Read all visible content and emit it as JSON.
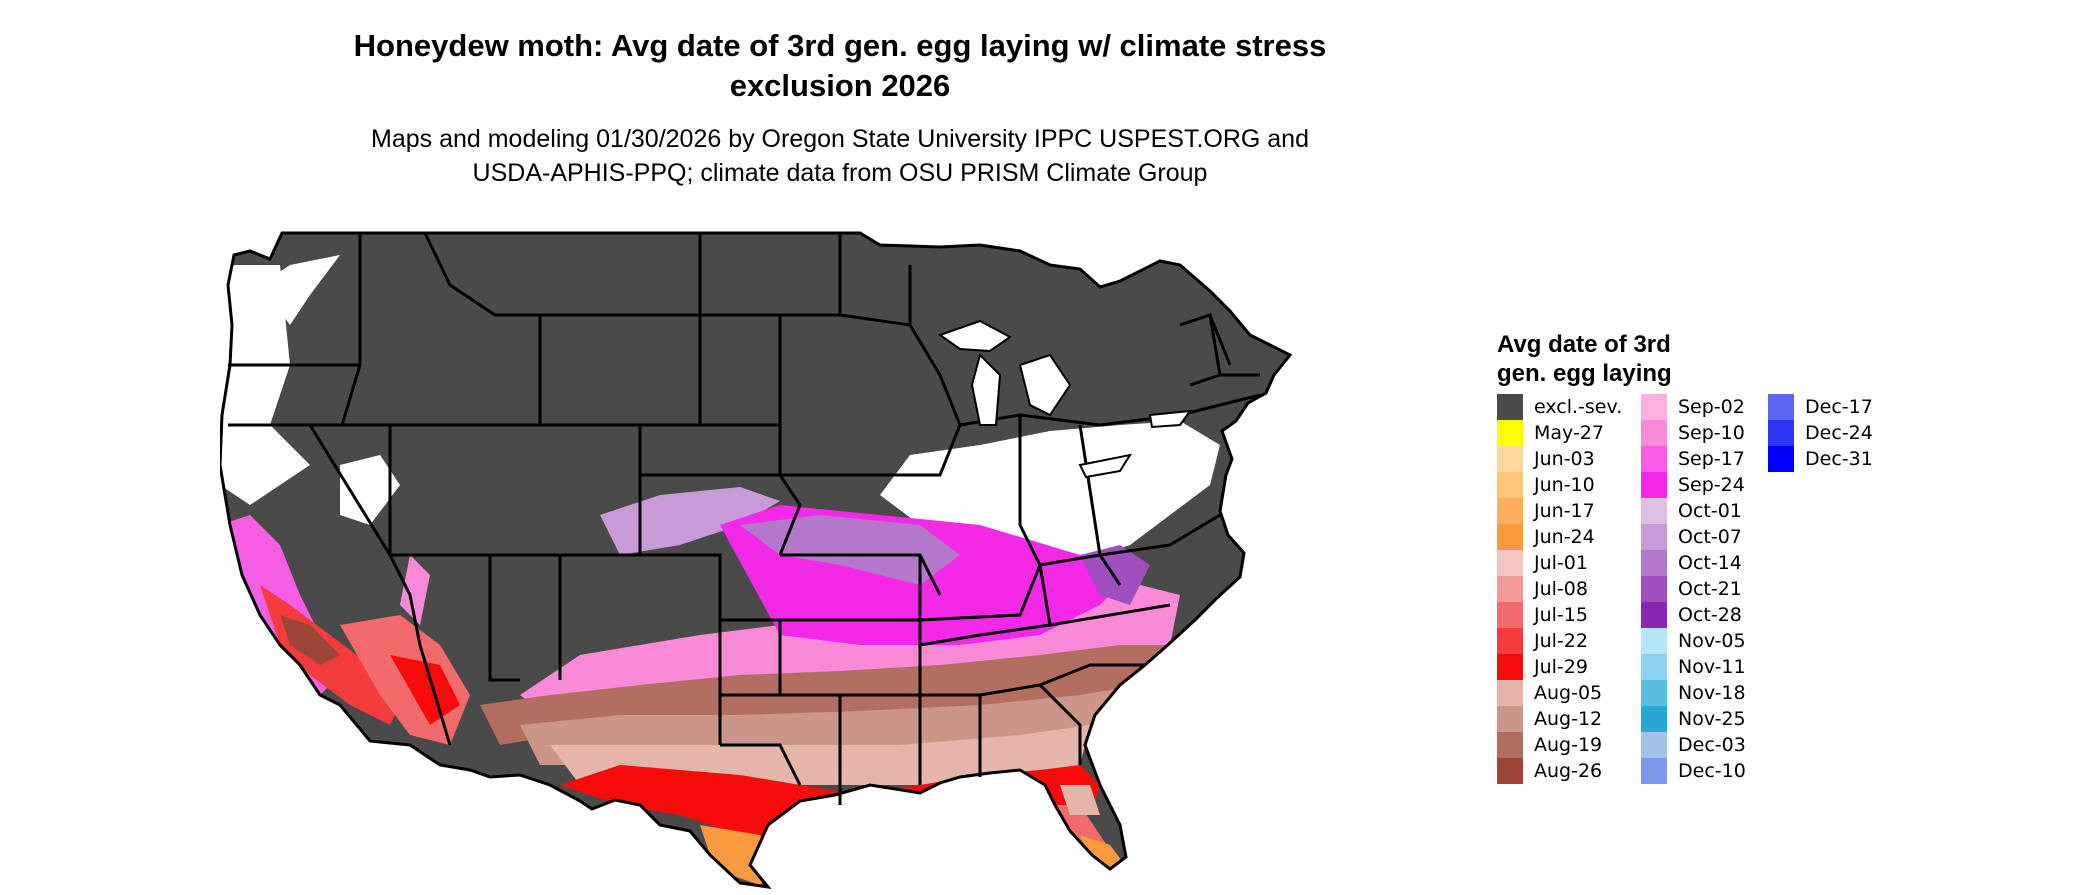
{
  "title": {
    "line1": "Honeydew moth: Avg date of 3rd gen. egg laying w/ climate stress",
    "line2": "exclusion 2026"
  },
  "subtitle": {
    "line1": "Maps and modeling 01/30/2026 by Oregon State University IPPC USPEST.ORG and",
    "line2": "USDA-APHIS-PPQ; climate data from OSU PRISM Climate Group"
  },
  "legend": {
    "title_line1": "Avg date of 3rd",
    "title_line2": "gen. egg laying",
    "items": [
      {
        "label": "excl.-sev.",
        "color": "#4a4a4a"
      },
      {
        "label": "May-27",
        "color": "#ffff00"
      },
      {
        "label": "Jun-03",
        "color": "#fdd99b"
      },
      {
        "label": "Jun-10",
        "color": "#fdc57a"
      },
      {
        "label": "Jun-17",
        "color": "#fcb05e"
      },
      {
        "label": "Jun-24",
        "color": "#f99a3e"
      },
      {
        "label": "Jul-01",
        "color": "#f6c5c5"
      },
      {
        "label": "Jul-08",
        "color": "#f39b9b"
      },
      {
        "label": "Jul-15",
        "color": "#f26a6a"
      },
      {
        "label": "Jul-22",
        "color": "#f43c3c"
      },
      {
        "label": "Jul-29",
        "color": "#f80b0b"
      },
      {
        "label": "Aug-05",
        "color": "#e5b5aa"
      },
      {
        "label": "Aug-12",
        "color": "#cb9587"
      },
      {
        "label": "Aug-19",
        "color": "#b26e60"
      },
      {
        "label": "Aug-26",
        "color": "#9b4637"
      },
      {
        "label": "Sep-02",
        "color": "#fbb0dd"
      },
      {
        "label": "Sep-10",
        "color": "#f98ad8"
      },
      {
        "label": "Sep-17",
        "color": "#f65ee6"
      },
      {
        "label": "Sep-24",
        "color": "#f22ae7"
      },
      {
        "label": "Oct-01",
        "color": "#dcc0e2"
      },
      {
        "label": "Oct-07",
        "color": "#c89bd6"
      },
      {
        "label": "Oct-14",
        "color": "#b478cb"
      },
      {
        "label": "Oct-21",
        "color": "#a04fbe"
      },
      {
        "label": "Oct-28",
        "color": "#8a26b0"
      },
      {
        "label": "Nov-05",
        "color": "#b6e6f8"
      },
      {
        "label": "Nov-11",
        "color": "#8cd3ef"
      },
      {
        "label": "Nov-18",
        "color": "#5cbde2"
      },
      {
        "label": "Nov-25",
        "color": "#2aa6d3"
      },
      {
        "label": "Dec-03",
        "color": "#a3c2e8"
      },
      {
        "label": "Dec-10",
        "color": "#7d99ec"
      },
      {
        "label": "Dec-17",
        "color": "#5b66f3"
      },
      {
        "label": "Dec-24",
        "color": "#2e36f6"
      },
      {
        "label": "Dec-31",
        "color": "#0000ff"
      }
    ]
  }
}
